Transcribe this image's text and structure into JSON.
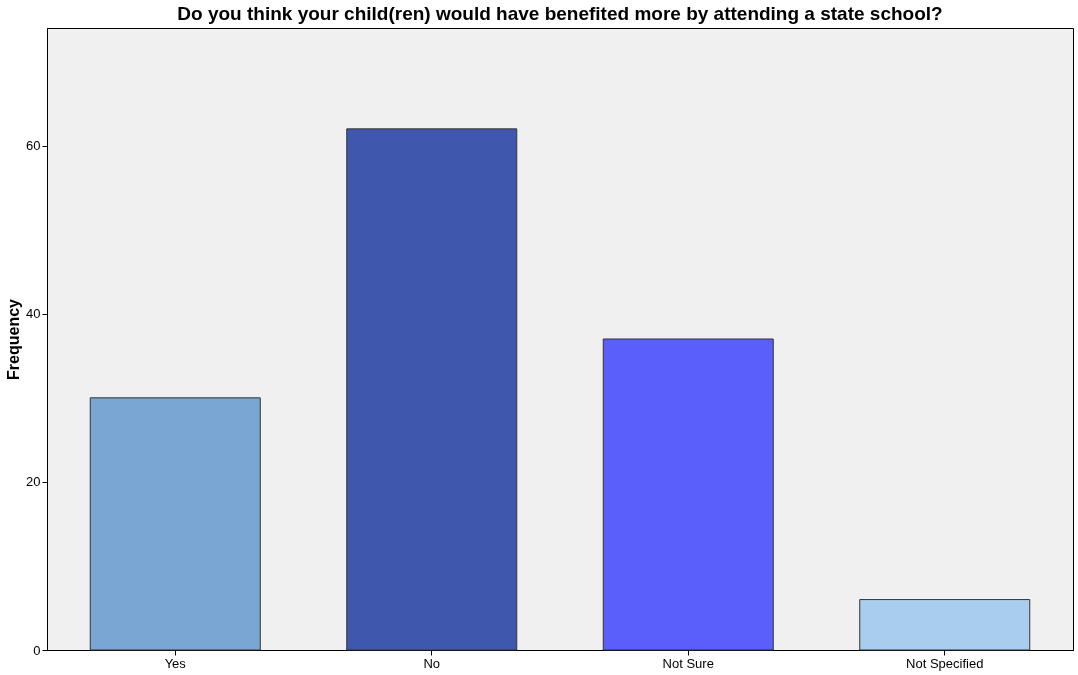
{
  "chart_data": {
    "type": "bar",
    "title": "Do you think your child(ren) would have benefited more by attending a state school?",
    "ylabel": "Frequency",
    "categories": [
      "Yes",
      "No",
      "Not Sure",
      "Not Specified"
    ],
    "values": [
      30,
      62,
      37,
      6
    ],
    "colors": [
      "#7aa6d4",
      "#3f58ad",
      "#5a5ffc",
      "#a9cdee"
    ],
    "ylim": [
      0,
      74
    ],
    "yticks": [
      0,
      20,
      40,
      60
    ],
    "grid": false
  }
}
